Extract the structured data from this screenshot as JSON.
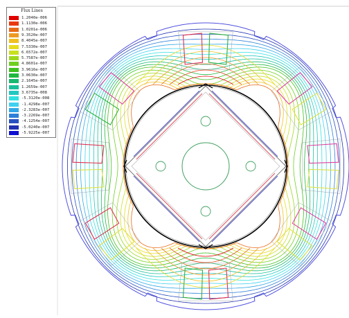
{
  "legend": {
    "title": "Flux Lines",
    "entries": [
      {
        "label": "1.2040e-006",
        "color": "#e00000"
      },
      {
        "label": "1.1130e-006",
        "color": "#e83a10"
      },
      {
        "label": "1.0201e-006",
        "color": "#e86a18"
      },
      {
        "label": "9.3520e-007",
        "color": "#ee9a22"
      },
      {
        "label": "8.4045e-007",
        "color": "#f0c020"
      },
      {
        "label": "7.5330e-007",
        "color": "#e6dc1e"
      },
      {
        "label": "6.6572e-007",
        "color": "#c8e020"
      },
      {
        "label": "5.7587e-007",
        "color": "#9cd81e"
      },
      {
        "label": "4.8601e-007",
        "color": "#6fcf20"
      },
      {
        "label": "3.9616e-007",
        "color": "#40c020"
      },
      {
        "label": "3.0630e-007",
        "color": "#20b840"
      },
      {
        "label": "2.1645e-007",
        "color": "#18b870"
      },
      {
        "label": "1.2659e-007",
        "color": "#18c09a"
      },
      {
        "label": "3.6735e-008",
        "color": "#20c8c0"
      },
      {
        "label": "-5.3120e-008",
        "color": "#30e0e0"
      },
      {
        "label": "-1.4298e-007",
        "color": "#40d0f0"
      },
      {
        "label": "-2.3283e-007",
        "color": "#30a8e8"
      },
      {
        "label": "-3.2269e-007",
        "color": "#2c80d8"
      },
      {
        "label": "-4.1254e-007",
        "color": "#2850c0"
      },
      {
        "label": "-5.0240e-007",
        "color": "#2030b0"
      },
      {
        "label": "-5.9225e-007",
        "color": "#1010d0"
      }
    ]
  },
  "colors": {
    "rotor_outline": "#000000",
    "stator_outline": "#5050e0",
    "coil_red": "#e03050",
    "coil_pink": "#e040a0",
    "coil_green": "#30b040",
    "coil_yellow": "#e0e040",
    "magnet_red": "#e05060",
    "magnet_blue": "#5050d0",
    "hole": "#40a060",
    "frame": "#c0c0c0"
  }
}
